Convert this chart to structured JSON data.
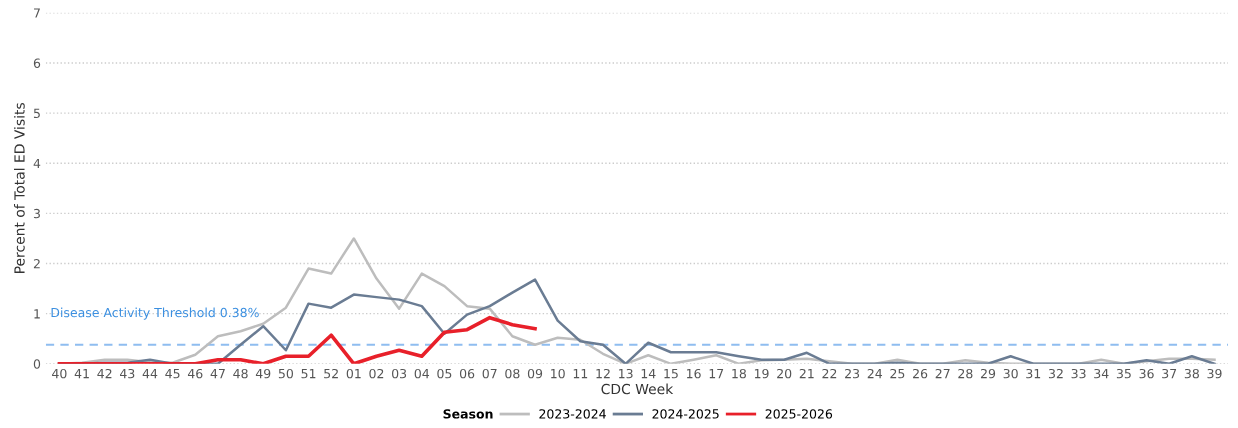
{
  "chart_data": {
    "type": "line",
    "xlabel": "CDC Week",
    "ylabel": "Percent of Total ED Visits",
    "legend_title": "Season",
    "legend": "bottom",
    "grid": "y",
    "line_style": "solid",
    "marker": "none",
    "categories": [
      "40",
      "41",
      "42",
      "43",
      "44",
      "45",
      "46",
      "47",
      "48",
      "49",
      "50",
      "51",
      "52",
      "01",
      "02",
      "03",
      "04",
      "05",
      "06",
      "07",
      "08",
      "09",
      "10",
      "11",
      "12",
      "13",
      "14",
      "15",
      "16",
      "17",
      "18",
      "19",
      "20",
      "21",
      "22",
      "23",
      "24",
      "25",
      "26",
      "27",
      "28",
      "29",
      "30",
      "31",
      "32",
      "33",
      "34",
      "35",
      "36",
      "37",
      "38",
      "39"
    ],
    "ylim": [
      0,
      7
    ],
    "yticks": [
      0,
      1,
      2,
      3,
      4,
      5,
      6,
      7
    ],
    "series": [
      {
        "name": "2023-2024",
        "color": "#bdbdbd",
        "values": [
          0,
          0.02,
          0.08,
          0.08,
          0.03,
          0.02,
          0.18,
          0.55,
          0.65,
          0.8,
          1.12,
          1.9,
          1.8,
          2.5,
          1.7,
          1.1,
          1.8,
          1.55,
          1.15,
          1.1,
          0.55,
          0.38,
          0.52,
          0.48,
          0.2,
          0,
          0.17,
          0,
          0.08,
          0.17,
          0,
          0.07,
          0.08,
          0.1,
          0.05,
          0,
          0,
          0.08,
          0,
          0,
          0.07,
          0.02,
          0,
          0,
          0,
          0,
          0.08,
          0,
          0.05,
          0.1,
          0.1,
          0.08
        ]
      },
      {
        "name": "2024-2025",
        "color": "#6a7c93",
        "values": [
          0,
          0,
          0.02,
          0.02,
          0.08,
          0,
          0,
          0,
          0.38,
          0.75,
          0.27,
          1.2,
          1.12,
          1.38,
          1.33,
          1.28,
          1.15,
          0.6,
          0.98,
          1.15,
          1.42,
          1.68,
          0.86,
          0.45,
          0.38,
          0,
          0.42,
          0.23,
          0.23,
          0.23,
          0.15,
          0.08,
          0.08,
          0.22,
          0,
          0,
          0,
          0.02,
          0,
          0,
          0,
          0,
          0.15,
          0,
          0,
          0,
          0,
          0,
          0.07,
          0,
          0.15,
          0
        ]
      },
      {
        "name": "2025-2026",
        "color": "#e8202a",
        "values": [
          0,
          0,
          0,
          0,
          0,
          0,
          0,
          0.08,
          0.08,
          0,
          0.15,
          0.15,
          0.57,
          0,
          0.15,
          0.27,
          0.15,
          0.63,
          0.68,
          0.92,
          0.78,
          0.7,
          null,
          null,
          null,
          null,
          null,
          null,
          null,
          null,
          null,
          null,
          null,
          null,
          null,
          null,
          null,
          null,
          null,
          null,
          null,
          null,
          null,
          null,
          null,
          null,
          null,
          null,
          null,
          null,
          null,
          null
        ]
      }
    ],
    "ref_lines": [
      {
        "axis": "y",
        "value": 0.38,
        "label": "Disease Activity Threshold 0.38%",
        "color": "#8fbdf0",
        "line_style": "dashed"
      }
    ]
  }
}
